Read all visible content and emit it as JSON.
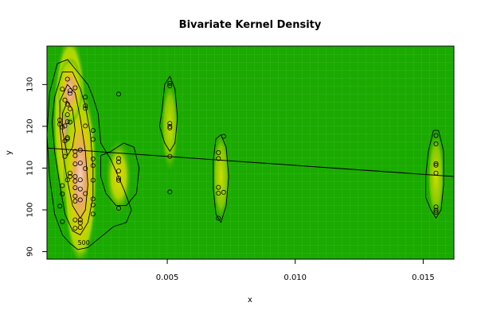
{
  "chart_data": {
    "type": "heatmap",
    "title": "Bivariate Kernel Density",
    "xlabel": "x",
    "ylabel": "y",
    "xlim": [
      0.0003,
      0.0162
    ],
    "ylim": [
      88.2,
      139.2
    ],
    "x_ticks": [
      0.005,
      0.01,
      0.015
    ],
    "x_tick_labels": [
      "0.005",
      "0.010",
      "0.015"
    ],
    "y_ticks": [
      90,
      100,
      110,
      120,
      130
    ],
    "y_tick_labels": [
      "90",
      "100",
      "110",
      "120",
      "130"
    ],
    "contour_label": "500",
    "points": [
      [
        0.0008,
        120.5
      ],
      [
        0.0008,
        121.5
      ],
      [
        0.0009,
        119.8
      ],
      [
        0.0008,
        100.9
      ],
      [
        0.0009,
        97.2
      ],
      [
        0.0009,
        105.8
      ],
      [
        0.0009,
        103.8
      ],
      [
        0.0009,
        128.9
      ],
      [
        0.001,
        126.3
      ],
      [
        0.001,
        116.5
      ],
      [
        0.001,
        112.8
      ],
      [
        0.001,
        120.1
      ],
      [
        0.0011,
        131.3
      ],
      [
        0.0011,
        125.3
      ],
      [
        0.0011,
        122.8
      ],
      [
        0.0011,
        117.3
      ],
      [
        0.0011,
        117.0
      ],
      [
        0.0011,
        107.2
      ],
      [
        0.0011,
        121.1
      ],
      [
        0.0012,
        108.0
      ],
      [
        0.0012,
        108.8
      ],
      [
        0.0012,
        127.9
      ],
      [
        0.0012,
        128.5
      ],
      [
        0.0012,
        124.2
      ],
      [
        0.0012,
        121.0
      ],
      [
        0.0014,
        129.2
      ],
      [
        0.0014,
        114.0
      ],
      [
        0.0014,
        113.0
      ],
      [
        0.0014,
        111.0
      ],
      [
        0.0014,
        108.0
      ],
      [
        0.0014,
        106.9
      ],
      [
        0.0014,
        105.3
      ],
      [
        0.0014,
        103.3
      ],
      [
        0.0014,
        102.1
      ],
      [
        0.0014,
        97.6
      ],
      [
        0.0014,
        95.6
      ],
      [
        0.0016,
        114.3
      ],
      [
        0.0016,
        111.2
      ],
      [
        0.0016,
        107.2
      ],
      [
        0.0016,
        102.4
      ],
      [
        0.0016,
        96.9
      ],
      [
        0.0016,
        95.8
      ],
      [
        0.0016,
        97.6
      ],
      [
        0.0016,
        105.0
      ],
      [
        0.0018,
        127.0
      ],
      [
        0.0018,
        124.9
      ],
      [
        0.0018,
        124.3
      ],
      [
        0.0018,
        120.1
      ],
      [
        0.0018,
        109.9
      ],
      [
        0.0018,
        103.9
      ],
      [
        0.0021,
        119.0
      ],
      [
        0.0021,
        116.9
      ],
      [
        0.0021,
        112.2
      ],
      [
        0.0021,
        110.6
      ],
      [
        0.0021,
        107.1
      ],
      [
        0.0021,
        102.6
      ],
      [
        0.0021,
        101.2
      ],
      [
        0.0021,
        99.0
      ],
      [
        0.0031,
        127.7
      ],
      [
        0.0031,
        112.3
      ],
      [
        0.0031,
        111.5
      ],
      [
        0.0031,
        109.3
      ],
      [
        0.0031,
        107.6
      ],
      [
        0.0031,
        107.1
      ],
      [
        0.0031,
        100.4
      ],
      [
        0.0051,
        130.3
      ],
      [
        0.0051,
        129.7
      ],
      [
        0.0051,
        120.7
      ],
      [
        0.0051,
        120.0
      ],
      [
        0.0051,
        119.6
      ],
      [
        0.0051,
        112.8
      ],
      [
        0.0051,
        104.3
      ],
      [
        0.007,
        113.7
      ],
      [
        0.007,
        112.3
      ],
      [
        0.007,
        105.4
      ],
      [
        0.007,
        104.0
      ],
      [
        0.007,
        98.0
      ],
      [
        0.0072,
        117.6
      ],
      [
        0.0072,
        104.2
      ],
      [
        0.0155,
        117.8
      ],
      [
        0.0155,
        115.8
      ],
      [
        0.0155,
        111.1
      ],
      [
        0.0155,
        110.7
      ],
      [
        0.0155,
        108.8
      ],
      [
        0.0155,
        100.7
      ],
      [
        0.0155,
        99.9
      ],
      [
        0.0155,
        99.4
      ]
    ],
    "regression_line": {
      "x": [
        0.0003,
        0.0162
      ],
      "y": [
        114.8,
        108.0
      ]
    },
    "density_peaks": [
      {
        "x": 0.0012,
        "y": 121.0,
        "level": 1.0
      },
      {
        "x": 0.0016,
        "y": 108.0,
        "level": 0.85
      },
      {
        "x": 0.0012,
        "y": 128.5,
        "level": 0.7
      },
      {
        "x": 0.0031,
        "y": 108.0,
        "level": 0.35
      },
      {
        "x": 0.0051,
        "y": 120.0,
        "level": 0.25
      },
      {
        "x": 0.0071,
        "y": 108.0,
        "level": 0.22
      },
      {
        "x": 0.0155,
        "y": 108.0,
        "level": 0.2
      }
    ],
    "colors": {
      "background_low": "#00a000",
      "background_mid": "#7ccf00",
      "yellow": "#e8e000",
      "orange": "#e8a050",
      "peak": "#f2c8b0",
      "contour": "#000000",
      "point": "#000000"
    }
  }
}
